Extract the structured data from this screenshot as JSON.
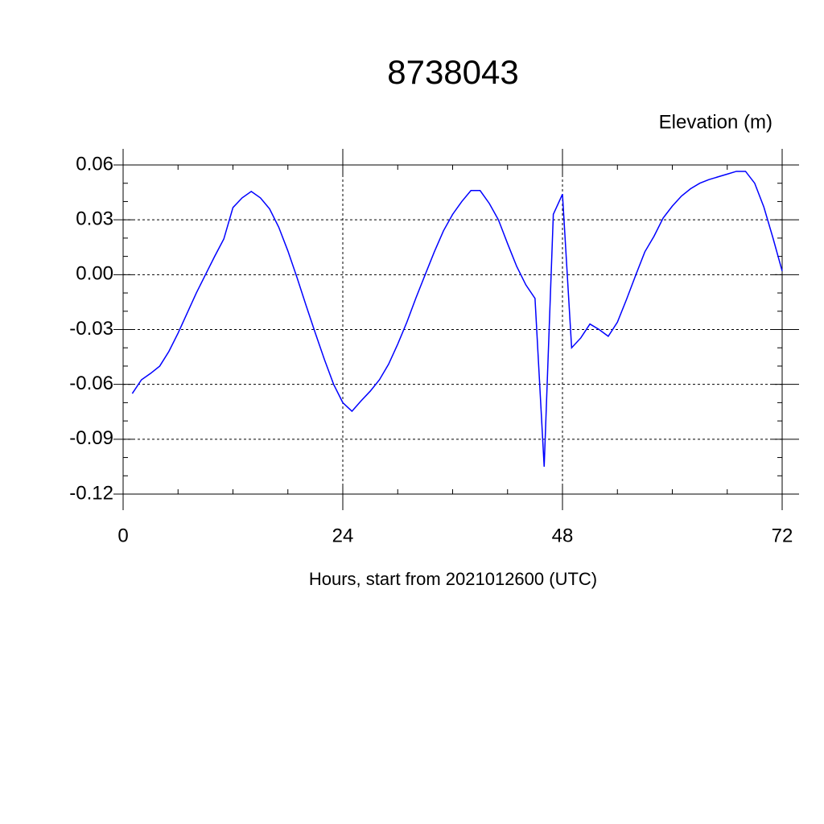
{
  "chart_data": {
    "type": "line",
    "title": "8738043",
    "y_label": "Elevation (m)",
    "x_label": "Hours, start from 2021012600 (UTC)",
    "x": [
      1,
      2,
      3,
      4,
      5,
      6,
      7,
      8,
      9,
      10,
      11,
      12,
      13,
      14,
      15,
      16,
      17,
      18,
      19,
      20,
      21,
      22,
      23,
      24,
      25,
      26,
      27,
      28,
      29,
      30,
      31,
      32,
      33,
      34,
      35,
      36,
      37,
      38,
      39,
      40,
      41,
      42,
      43,
      44,
      45,
      46,
      47,
      48,
      49,
      50,
      51,
      52,
      53,
      54,
      55,
      56,
      57,
      58,
      59,
      60,
      61,
      62,
      63,
      64,
      65,
      66,
      67,
      68,
      69,
      70,
      71,
      72
    ],
    "series": [
      {
        "name": "Elevation",
        "color": "#0000ff",
        "values": [
          -0.065,
          -0.0575,
          -0.054,
          -0.05,
          -0.042,
          -0.032,
          -0.021,
          -0.01,
          0.0,
          0.01,
          0.0195,
          0.0367,
          0.042,
          0.0455,
          0.042,
          0.036,
          0.026,
          0.013,
          -0.0016,
          -0.017,
          -0.032,
          -0.0465,
          -0.06,
          -0.07,
          -0.0747,
          -0.069,
          -0.0637,
          -0.0575,
          -0.049,
          -0.038,
          -0.026,
          -0.0126,
          0.0,
          0.0125,
          0.024,
          0.033,
          0.04,
          0.046,
          0.046,
          0.039,
          0.03,
          0.017,
          0.0045,
          -0.0056,
          -0.013,
          -0.105,
          0.033,
          0.044,
          -0.04,
          -0.0346,
          -0.027,
          -0.03,
          -0.0337,
          -0.026,
          -0.0135,
          -0.0003,
          0.0125,
          0.021,
          0.031,
          0.0375,
          0.043,
          0.047,
          0.05,
          0.052,
          0.0535,
          0.055,
          0.0565,
          0.0565,
          0.05,
          0.037,
          0.02,
          0.002
        ]
      }
    ],
    "xlim": [
      0,
      72
    ],
    "xticks": [
      0,
      24,
      48,
      72
    ],
    "xminorticks": [
      6,
      12,
      18,
      30,
      36,
      42,
      54,
      60,
      66
    ],
    "ylim": [
      -0.12,
      0.06
    ],
    "yticks": [
      0.06,
      0.03,
      {
        "value": 0,
        "label": "0.00"
      },
      -0.03,
      -0.06,
      -0.09,
      -0.12
    ],
    "yminorticks": [
      0.05,
      0.04,
      0.02,
      0.01,
      -0.01,
      -0.02,
      -0.04,
      -0.05,
      -0.07,
      -0.08,
      -0.1,
      -0.11
    ],
    "grid": true
  }
}
